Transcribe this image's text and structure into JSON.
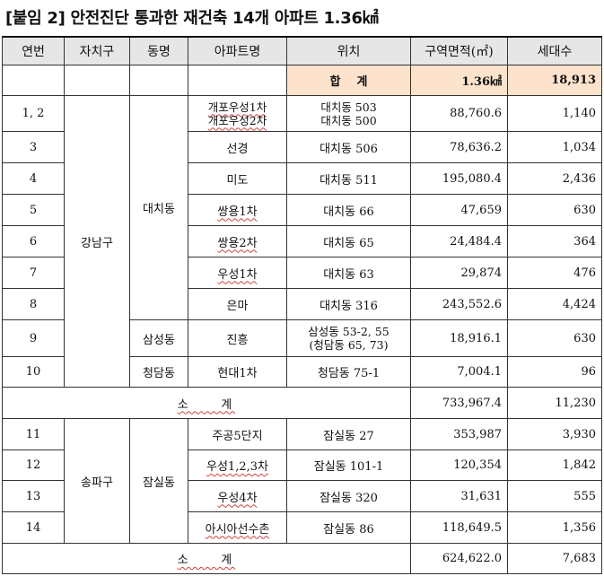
{
  "title": "[붙임 2] 안전진단 통과한 재건축 14개 아파트 1.36㎢",
  "headers": [
    "연번",
    "자치구",
    "동명",
    "아파트명",
    "위치",
    "구역면적(㎡)",
    "세대수"
  ],
  "total": {
    "label": "합    계",
    "area": "1.36㎢",
    "households": "18,913"
  },
  "gangnam": {
    "district": "강남구",
    "daechi": "대치동",
    "samseong": "삼성동",
    "cheongdam": "청담동",
    "rows": [
      {
        "no": "1, 2",
        "apt": [
          "개포우성1차",
          "개포우성2차"
        ],
        "loc": [
          "대치동 503",
          "대치동 500"
        ],
        "area": "88,760.6",
        "households": "1,140"
      },
      {
        "no": "3",
        "apt": "선경",
        "loc": "대치동 506",
        "area": "78,636.2",
        "households": "1,034"
      },
      {
        "no": "4",
        "apt": "미도",
        "loc": "대치동 511",
        "area": "195,080.4",
        "households": "2,436"
      },
      {
        "no": "5",
        "apt": "쌍용1차",
        "loc": "대치동 66",
        "area": "47,659",
        "households": "630"
      },
      {
        "no": "6",
        "apt": "쌍용2차",
        "loc": "대치동 65",
        "area": "24,484.4",
        "households": "364"
      },
      {
        "no": "7",
        "apt": "우성1차",
        "loc": "대치동 63",
        "area": "29,874",
        "households": "476"
      },
      {
        "no": "8",
        "apt": "은마",
        "loc": "대치동 316",
        "area": "243,552.6",
        "households": "4,424"
      },
      {
        "no": "9",
        "apt": "진흥",
        "loc": [
          "삼성동 53-2, 55",
          "(청담동 65, 73)"
        ],
        "area": "18,916.1",
        "households": "630"
      },
      {
        "no": "10",
        "apt": "현대1차",
        "loc": "청담동 75-1",
        "area": "7,004.1",
        "households": "96"
      }
    ],
    "subtotal": {
      "label": "소    계",
      "area": "733,967.4",
      "households": "11,230"
    }
  },
  "songpa": {
    "district": "송파구",
    "jamsil": "잠실동",
    "rows": [
      {
        "no": "11",
        "apt": "주공5단지",
        "loc": "잠실동 27",
        "area": "353,987",
        "households": "3,930"
      },
      {
        "no": "12",
        "apt": "우성1,2,3차",
        "loc": "잠실동 101-1",
        "area": "120,354",
        "households": "1,842"
      },
      {
        "no": "13",
        "apt": "우성4차",
        "loc": "잠실동 320",
        "area": "31,631",
        "households": "555"
      },
      {
        "no": "14",
        "apt": "아시아선수촌",
        "loc": "잠실동 86",
        "area": "118,649.5",
        "households": "1,356"
      }
    ],
    "subtotal": {
      "label": "소    계",
      "area": "624,622.0",
      "households": "7,683"
    }
  }
}
